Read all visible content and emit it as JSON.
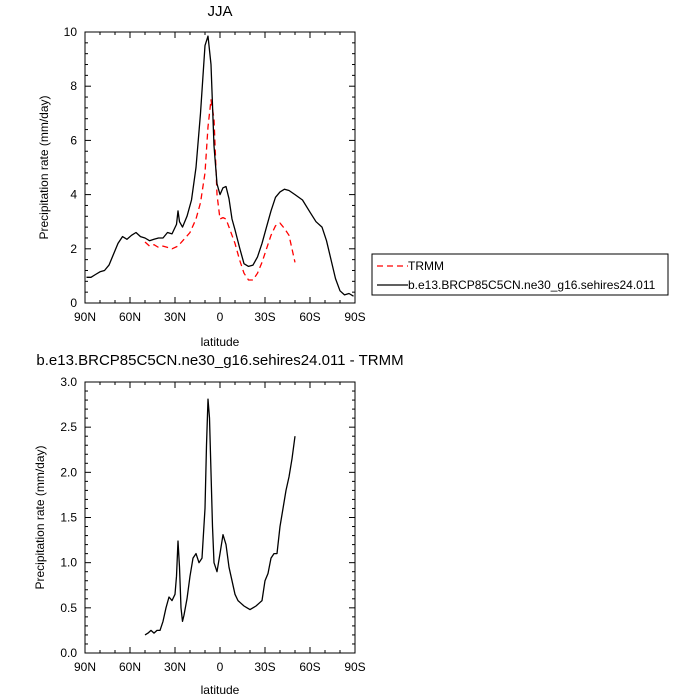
{
  "chart_data": [
    {
      "type": "line",
      "title": "JJA",
      "xlabel": "latitude",
      "ylabel": "Precipitation rate (mm/day)",
      "xlim": [
        90,
        -90
      ],
      "ylim": [
        0,
        10
      ],
      "x_ticks": [
        90,
        60,
        30,
        0,
        -30,
        -60,
        -90
      ],
      "x_tick_labels": [
        "90N",
        "60N",
        "30N",
        "0",
        "30S",
        "60S",
        "90S"
      ],
      "y_ticks": [
        0,
        2,
        4,
        6,
        8,
        10
      ],
      "y_tick_labels": [
        "0",
        "2",
        "4",
        "6",
        "8",
        "10"
      ],
      "legend_position": "right, outside plot",
      "series": [
        {
          "name": "TRMM",
          "color": "#ff0000",
          "dash": "dashed",
          "x": [
            50,
            47,
            44,
            41,
            38,
            35,
            32,
            28,
            24,
            20,
            16,
            13,
            10,
            8,
            6,
            4,
            2,
            0,
            -2,
            -4,
            -6,
            -8,
            -10,
            -13,
            -16,
            -19,
            -22,
            -25,
            -28,
            -31,
            -34,
            -37,
            -40,
            -43,
            -46,
            -50
          ],
          "y": [
            2.25,
            2.1,
            2.15,
            2.05,
            2.1,
            2.05,
            2.0,
            2.1,
            2.35,
            2.6,
            3.1,
            3.7,
            4.8,
            6.5,
            7.5,
            6.8,
            4.0,
            3.1,
            3.15,
            3.1,
            2.8,
            2.5,
            2.2,
            1.6,
            1.1,
            0.85,
            0.85,
            1.1,
            1.5,
            2.0,
            2.5,
            2.85,
            2.95,
            2.75,
            2.5,
            1.5
          ]
        },
        {
          "name": "b.e13.BRCP85C5CN.ne30_g16.sehires24.011",
          "color": "#000000",
          "dash": "solid",
          "x": [
            89,
            86,
            83,
            80,
            77,
            74,
            71,
            68,
            65,
            62,
            59,
            56,
            53,
            50,
            47,
            44,
            41,
            38,
            35,
            32,
            29,
            28,
            27,
            25,
            22,
            19,
            16,
            13,
            10,
            8,
            6,
            4,
            2,
            0,
            -2,
            -4,
            -6,
            -8,
            -10,
            -13,
            -16,
            -19,
            -22,
            -25,
            -28,
            -31,
            -34,
            -37,
            -40,
            -43,
            -46,
            -50,
            -55,
            -60,
            -64,
            -68,
            -71,
            -74,
            -77,
            -80,
            -83,
            -86,
            -89
          ],
          "y": [
            0.95,
            0.95,
            1.05,
            1.15,
            1.2,
            1.4,
            1.8,
            2.2,
            2.45,
            2.35,
            2.5,
            2.6,
            2.45,
            2.4,
            2.3,
            2.35,
            2.4,
            2.4,
            2.6,
            2.55,
            2.9,
            3.4,
            3.0,
            2.8,
            3.2,
            3.8,
            5.0,
            7.0,
            9.5,
            9.85,
            8.8,
            5.8,
            4.4,
            4.0,
            4.25,
            4.3,
            3.85,
            3.1,
            2.7,
            2.05,
            1.45,
            1.35,
            1.4,
            1.7,
            2.2,
            2.8,
            3.4,
            3.9,
            4.1,
            4.2,
            4.15,
            4.0,
            3.8,
            3.35,
            3.0,
            2.8,
            2.3,
            1.6,
            0.9,
            0.45,
            0.3,
            0.35,
            0.25
          ]
        }
      ]
    },
    {
      "type": "line",
      "title": "b.e13.BRCP85C5CN.ne30_g16.sehires24.011 - TRMM",
      "xlabel": "latitude",
      "ylabel": "Precipitation rate (mm/day)",
      "xlim": [
        90,
        -90
      ],
      "ylim": [
        0,
        3
      ],
      "x_ticks": [
        90,
        60,
        30,
        0,
        -30,
        -60,
        -90
      ],
      "x_tick_labels": [
        "90N",
        "60N",
        "30N",
        "0",
        "30S",
        "60S",
        "90S"
      ],
      "y_ticks": [
        0,
        0.5,
        1,
        1.5,
        2,
        2.5,
        3
      ],
      "y_tick_labels": [
        "0.0",
        "0.5",
        "1.0",
        "1.5",
        "2.0",
        "2.5",
        "3.0"
      ],
      "series": [
        {
          "color": "#000000",
          "dash": "solid",
          "x": [
            50,
            48,
            46,
            44,
            42,
            40,
            38,
            36,
            34,
            32,
            30,
            29,
            28,
            27,
            26,
            25,
            24,
            22,
            20,
            18,
            16,
            14,
            12,
            10,
            9,
            8,
            7,
            6,
            5,
            4,
            2,
            0,
            -2,
            -4,
            -6,
            -8,
            -10,
            -12,
            -14,
            -16,
            -18,
            -20,
            -22,
            -24,
            -26,
            -28,
            -30,
            -32,
            -34,
            -36,
            -38,
            -40,
            -42,
            -44,
            -46,
            -48,
            -50
          ],
          "y": [
            0.2,
            0.22,
            0.25,
            0.22,
            0.25,
            0.25,
            0.35,
            0.5,
            0.62,
            0.58,
            0.65,
            0.85,
            1.24,
            0.95,
            0.5,
            0.35,
            0.42,
            0.6,
            0.85,
            1.05,
            1.1,
            1.0,
            1.05,
            1.6,
            2.3,
            2.81,
            2.6,
            2.0,
            1.4,
            1.0,
            0.9,
            1.1,
            1.31,
            1.2,
            0.95,
            0.8,
            0.65,
            0.58,
            0.55,
            0.52,
            0.5,
            0.48,
            0.5,
            0.52,
            0.55,
            0.58,
            0.8,
            0.88,
            1.05,
            1.1,
            1.1,
            1.4,
            1.6,
            1.8,
            1.95,
            2.15,
            2.4
          ]
        }
      ]
    }
  ]
}
